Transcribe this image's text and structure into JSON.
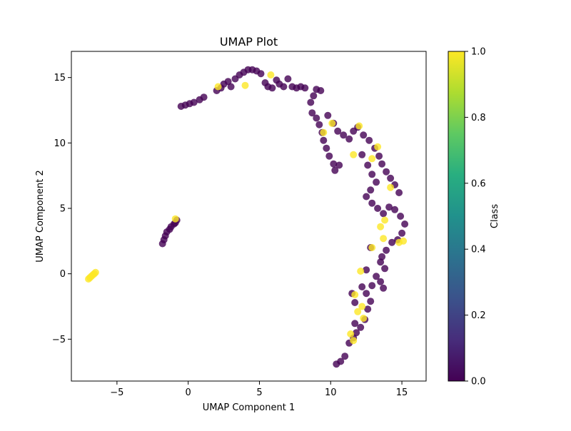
{
  "chart_data": {
    "type": "scatter",
    "title": "UMAP Plot",
    "xlabel": "UMAP Component 1",
    "ylabel": "UMAP Component 2",
    "xlim": [
      -8.2,
      16.7
    ],
    "ylim": [
      -8.2,
      17.0
    ],
    "xticks": [
      -5,
      0,
      5,
      10,
      15
    ],
    "yticks": [
      -5,
      0,
      5,
      10,
      15
    ],
    "grid": false,
    "colorbar": {
      "label": "Class",
      "range": [
        0.0,
        1.0
      ],
      "ticks": [
        "0.0",
        "0.2",
        "0.4",
        "0.6",
        "0.8",
        "1.0"
      ],
      "colormap": "viridis",
      "low_color": "#440154",
      "mid_color": "#21918c",
      "high_color": "#fde725"
    },
    "point_alpha": 0.8,
    "series": [
      {
        "class": 0,
        "color": "#440154",
        "points": [
          [
            -1.8,
            2.3
          ],
          [
            -1.7,
            2.6
          ],
          [
            -1.6,
            2.9
          ],
          [
            -1.5,
            3.2
          ],
          [
            -1.3,
            3.4
          ],
          [
            -1.2,
            3.6
          ],
          [
            -1.0,
            3.8
          ],
          [
            -0.9,
            3.9
          ],
          [
            -0.8,
            4.1
          ],
          [
            -0.5,
            12.8
          ],
          [
            -0.2,
            12.9
          ],
          [
            0.1,
            13.0
          ],
          [
            0.4,
            13.1
          ],
          [
            0.8,
            13.3
          ],
          [
            1.1,
            13.5
          ],
          [
            2.0,
            14.0
          ],
          [
            2.3,
            14.2
          ],
          [
            2.5,
            14.5
          ],
          [
            2.8,
            14.7
          ],
          [
            3.0,
            14.3
          ],
          [
            3.3,
            14.9
          ],
          [
            3.6,
            15.2
          ],
          [
            3.9,
            15.4
          ],
          [
            4.2,
            15.6
          ],
          [
            4.5,
            15.6
          ],
          [
            4.8,
            15.5
          ],
          [
            5.1,
            15.3
          ],
          [
            5.4,
            14.6
          ],
          [
            5.6,
            14.3
          ],
          [
            5.9,
            14.2
          ],
          [
            6.2,
            14.8
          ],
          [
            6.4,
            14.5
          ],
          [
            6.7,
            14.3
          ],
          [
            7.0,
            14.9
          ],
          [
            7.3,
            14.3
          ],
          [
            7.6,
            14.2
          ],
          [
            7.9,
            14.3
          ],
          [
            8.2,
            14.2
          ],
          [
            8.6,
            13.1
          ],
          [
            8.8,
            13.6
          ],
          [
            9.0,
            14.1
          ],
          [
            9.3,
            14.0
          ],
          [
            8.7,
            12.3
          ],
          [
            9.0,
            11.9
          ],
          [
            9.2,
            11.4
          ],
          [
            9.4,
            10.8
          ],
          [
            9.5,
            10.2
          ],
          [
            9.7,
            9.6
          ],
          [
            9.9,
            9.0
          ],
          [
            10.2,
            8.4
          ],
          [
            10.3,
            7.9
          ],
          [
            10.6,
            8.3
          ],
          [
            9.8,
            12.1
          ],
          [
            10.2,
            11.5
          ],
          [
            10.5,
            10.9
          ],
          [
            10.9,
            10.6
          ],
          [
            11.3,
            10.3
          ],
          [
            11.6,
            10.9
          ],
          [
            11.9,
            11.2
          ],
          [
            12.3,
            10.6
          ],
          [
            12.7,
            10.2
          ],
          [
            13.1,
            9.6
          ],
          [
            13.4,
            9.0
          ],
          [
            13.6,
            8.4
          ],
          [
            13.9,
            7.8
          ],
          [
            14.2,
            7.3
          ],
          [
            14.5,
            6.8
          ],
          [
            14.8,
            6.2
          ],
          [
            12.2,
            9.1
          ],
          [
            12.6,
            8.3
          ],
          [
            12.9,
            7.6
          ],
          [
            13.2,
            7.0
          ],
          [
            12.8,
            6.4
          ],
          [
            12.5,
            5.9
          ],
          [
            12.9,
            5.4
          ],
          [
            13.3,
            5.0
          ],
          [
            13.7,
            4.6
          ],
          [
            14.1,
            5.1
          ],
          [
            14.5,
            4.9
          ],
          [
            14.9,
            4.4
          ],
          [
            15.2,
            3.8
          ],
          [
            15.0,
            3.1
          ],
          [
            14.7,
            2.6
          ],
          [
            14.3,
            2.4
          ],
          [
            13.9,
            1.8
          ],
          [
            13.6,
            1.3
          ],
          [
            12.8,
            2.0
          ],
          [
            13.5,
            0.9
          ],
          [
            13.8,
            0.4
          ],
          [
            13.2,
            -0.2
          ],
          [
            12.9,
            -0.9
          ],
          [
            13.5,
            -0.6
          ],
          [
            13.7,
            -1.1
          ],
          [
            12.2,
            -1.0
          ],
          [
            12.5,
            -1.5
          ],
          [
            12.8,
            -2.1
          ],
          [
            12.6,
            -2.7
          ],
          [
            12.4,
            -3.5
          ],
          [
            12.1,
            -4.1
          ],
          [
            11.8,
            -4.5
          ],
          [
            11.6,
            -4.9
          ],
          [
            11.3,
            -5.3
          ],
          [
            11.5,
            -1.5
          ],
          [
            11.7,
            -2.2
          ],
          [
            11.7,
            -3.8
          ],
          [
            11.0,
            -6.3
          ],
          [
            10.7,
            -6.7
          ],
          [
            10.4,
            -6.9
          ],
          [
            12.5,
            0.3
          ]
        ]
      },
      {
        "class": 1,
        "color": "#fde725",
        "points": [
          [
            -7.0,
            -0.4
          ],
          [
            -6.9,
            -0.3
          ],
          [
            -6.8,
            -0.2
          ],
          [
            -6.7,
            -0.1
          ],
          [
            -6.6,
            0.0
          ],
          [
            -6.5,
            0.1
          ],
          [
            -0.9,
            4.2
          ],
          [
            5.8,
            15.2
          ],
          [
            4.0,
            14.4
          ],
          [
            2.1,
            14.3
          ],
          [
            9.5,
            10.8
          ],
          [
            10.1,
            11.5
          ],
          [
            11.6,
            9.1
          ],
          [
            12.0,
            11.3
          ],
          [
            12.9,
            8.8
          ],
          [
            13.3,
            9.7
          ],
          [
            14.2,
            6.6
          ],
          [
            13.8,
            4.1
          ],
          [
            13.5,
            3.6
          ],
          [
            14.8,
            2.4
          ],
          [
            15.1,
            2.5
          ],
          [
            12.9,
            2.0
          ],
          [
            13.7,
            2.7
          ],
          [
            12.1,
            0.2
          ],
          [
            11.9,
            -2.9
          ],
          [
            12.3,
            -3.4
          ],
          [
            11.4,
            -4.6
          ],
          [
            11.6,
            -5.1
          ],
          [
            11.7,
            -1.6
          ],
          [
            12.2,
            -2.5
          ]
        ]
      }
    ]
  }
}
